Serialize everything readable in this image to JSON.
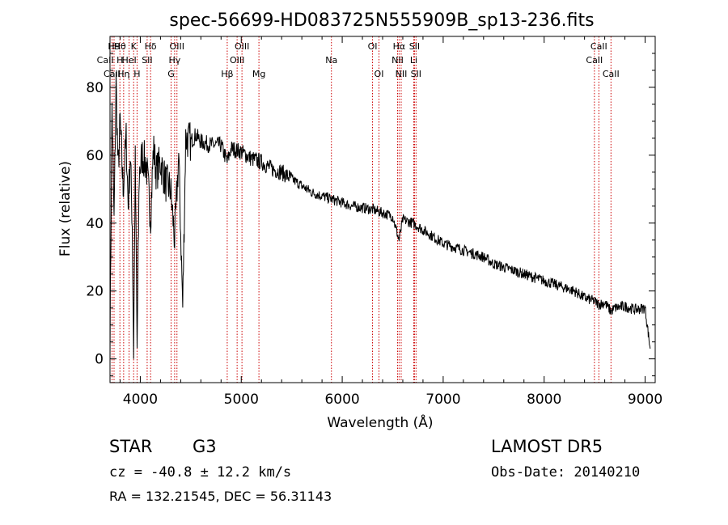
{
  "chart_data": {
    "type": "line",
    "title": "spec-56699-HD083725N555909B_sp13-236.fits",
    "xlabel": "Wavelength (Å)",
    "ylabel": "Flux (relative)",
    "xlim": [
      3700,
      9100
    ],
    "ylim": [
      -7,
      95
    ],
    "xticks": [
      4000,
      5000,
      6000,
      7000,
      8000,
      9000
    ],
    "yticks": [
      0,
      20,
      40,
      60,
      80
    ],
    "grid": false,
    "line_color": "#000000",
    "marker_color": "#cc0000",
    "series": [
      {
        "x": [
          3700,
          3720,
          3740,
          3760,
          3780,
          3800,
          3830,
          3860,
          3880,
          3900,
          3920,
          3934,
          3950,
          3968,
          3990,
          4020,
          4060,
          4102,
          4130,
          4160,
          4200,
          4250,
          4300,
          4340,
          4380,
          4420,
          4450,
          4500,
          4550,
          4600,
          4700,
          4800,
          4861,
          4900,
          5000,
          5100,
          5200,
          5300,
          5400,
          5500,
          5600,
          5700,
          5800,
          5900,
          6000,
          6100,
          6200,
          6300,
          6400,
          6500,
          6563,
          6600,
          6700,
          6800,
          6900,
          7000,
          7100,
          7200,
          7300,
          7400,
          7500,
          7600,
          7700,
          7800,
          7900,
          8000,
          8100,
          8200,
          8300,
          8400,
          8498,
          8542,
          8600,
          8662,
          8700,
          8800,
          8900,
          9000,
          9050
        ],
        "y": [
          5,
          75,
          40,
          82,
          55,
          70,
          50,
          65,
          45,
          60,
          40,
          2,
          58,
          3,
          55,
          60,
          57,
          42,
          62,
          55,
          58,
          52,
          50,
          35,
          60,
          15,
          65,
          64,
          66,
          64,
          63,
          63,
          58,
          62,
          61,
          59,
          58,
          56,
          55,
          53,
          51,
          49,
          48,
          47,
          46,
          45,
          44.5,
          44,
          43,
          42,
          35,
          41,
          40,
          38,
          36,
          34,
          33,
          32,
          31,
          30,
          28,
          27,
          26,
          25,
          24,
          23,
          22,
          21,
          20,
          18,
          17,
          16,
          16.5,
          14,
          15,
          15.5,
          14.5,
          15,
          3
        ]
      }
    ],
    "lines": [
      {
        "label": "CaII H",
        "x": 3700,
        "row": 1
      },
      {
        "label": "CaII",
        "x": 3720,
        "row": 2
      },
      {
        "label": "H9",
        "x": 3740,
        "row": 0
      },
      {
        "label": "Hθ",
        "x": 3798,
        "row": 0
      },
      {
        "label": "Hη",
        "x": 3835,
        "row": 2
      },
      {
        "label": "HeI",
        "x": 3889,
        "row": 1
      },
      {
        "label": "K",
        "x": 3934,
        "row": 0
      },
      {
        "label": "H",
        "x": 3968,
        "row": 2
      },
      {
        "label": "Hδ",
        "x": 4102,
        "row": 0
      },
      {
        "label": "SII",
        "x": 4068,
        "row": 1
      },
      {
        "label": "OIII",
        "x": 4363,
        "row": 0
      },
      {
        "label": "Hγ",
        "x": 4340,
        "row": 1
      },
      {
        "label": "G",
        "x": 4305,
        "row": 2
      },
      {
        "label": "Hβ",
        "x": 4861,
        "row": 2
      },
      {
        "label": "OIII",
        "x": 5007,
        "row": 0
      },
      {
        "label": "OIII",
        "x": 4959,
        "row": 1
      },
      {
        "label": "Mg",
        "x": 5175,
        "row": 2
      },
      {
        "label": "Na",
        "x": 5893,
        "row": 1
      },
      {
        "label": "OI",
        "x": 6300,
        "row": 0
      },
      {
        "label": "OI",
        "x": 6364,
        "row": 2
      },
      {
        "label": "Hα",
        "x": 6563,
        "row": 0
      },
      {
        "label": "NII",
        "x": 6548,
        "row": 1
      },
      {
        "label": "NII",
        "x": 6584,
        "row": 2
      },
      {
        "label": "SII",
        "x": 6716,
        "row": 0
      },
      {
        "label": "Li",
        "x": 6708,
        "row": 1
      },
      {
        "label": "SII",
        "x": 6731,
        "row": 2
      },
      {
        "label": "CaII",
        "x": 8542,
        "row": 0
      },
      {
        "label": "CaII",
        "x": 8498,
        "row": 1
      },
      {
        "label": "CaII",
        "x": 8662,
        "row": 2
      }
    ]
  },
  "info": {
    "object_class": "STAR",
    "subclass": "G3",
    "survey": "LAMOST  DR5",
    "cz": "cz = -40.8 ± 12.2 km/s",
    "obs_date": "Obs-Date: 20140210",
    "coords": "RA = 132.21545, DEC =  56.31143"
  }
}
